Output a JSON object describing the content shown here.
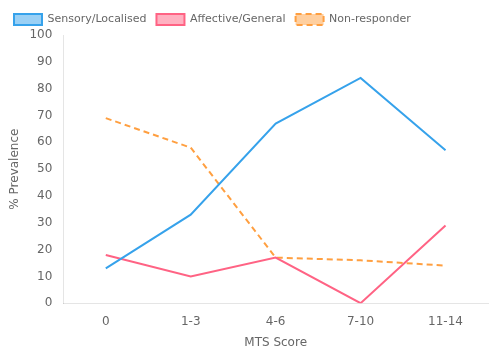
{
  "chart_data": {
    "type": "line",
    "categories": [
      "0",
      "1-3",
      "4-6",
      "7-10",
      "11-14"
    ],
    "series": [
      {
        "name": "Sensory/Localised",
        "values": [
          13,
          33,
          67,
          84,
          57
        ],
        "line_style": "solid"
      },
      {
        "name": "Affective/General",
        "values": [
          18,
          10,
          17,
          0,
          29
        ],
        "line_style": "solid"
      },
      {
        "name": "Non-responder",
        "values": [
          69,
          58,
          17,
          16,
          14
        ],
        "line_style": "dashed"
      }
    ],
    "xlabel": "MTS Score",
    "ylabel": "% Prevalence",
    "ylim": [
      0,
      100
    ],
    "yticks": [
      0,
      10,
      20,
      30,
      40,
      50,
      60,
      70,
      80,
      90,
      100
    ],
    "grid": false,
    "legend": "upper left"
  }
}
